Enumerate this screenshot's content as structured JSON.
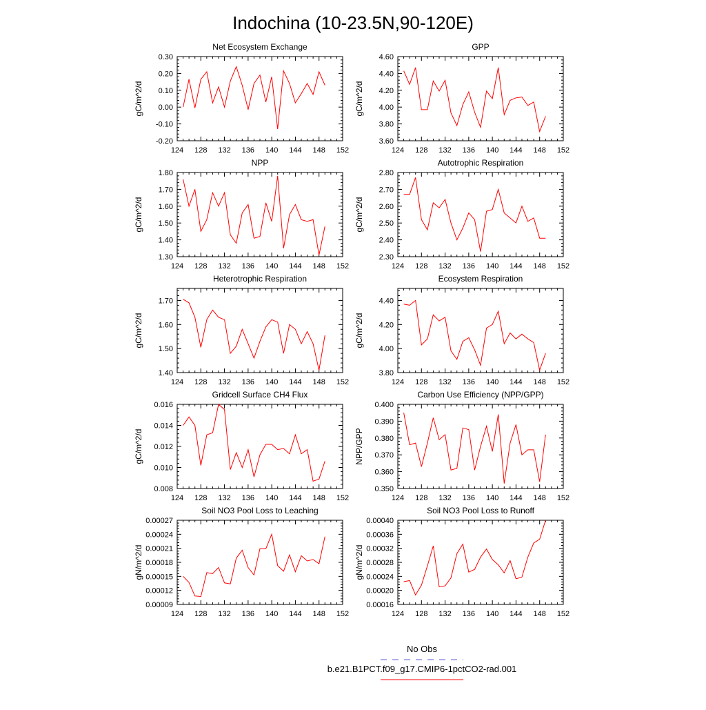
{
  "page": {
    "title": "Indochina (10-23.5N,90-120E)",
    "legend": [
      {
        "label": "No Obs",
        "color": "#5b5bd6",
        "dash": true
      },
      {
        "label": "b.e21.B1PCT.f09_g17.CMIP6-1pctCO2-rad.001",
        "color": "#ff0000",
        "dash": false
      }
    ]
  },
  "chart_data": [
    {
      "type": "line",
      "title": "Net Ecosystem Exchange",
      "ylabel": "gC/m^2/d",
      "xlim": [
        124,
        152
      ],
      "xticks": [
        124,
        128,
        132,
        136,
        140,
        144,
        148,
        152
      ],
      "ylim": [
        -0.2,
        0.3
      ],
      "yticks": [
        -0.2,
        -0.1,
        0.0,
        0.1,
        0.2,
        0.3
      ],
      "yticklabels": [
        "-0.20",
        "-0.10",
        "0.00",
        "0.10",
        "0.20",
        "0.30"
      ],
      "x": [
        125,
        126,
        127,
        128,
        129,
        130,
        131,
        132,
        133,
        134,
        135,
        136,
        137,
        138,
        139,
        140,
        141,
        142,
        143,
        144,
        145,
        146,
        147,
        148,
        149
      ],
      "series": [
        {
          "values": [
            0.0,
            0.165,
            -0.005,
            0.165,
            0.21,
            0.025,
            0.12,
            0.0,
            0.155,
            0.24,
            0.13,
            -0.015,
            0.14,
            0.19,
            0.03,
            0.18,
            -0.13,
            0.215,
            0.14,
            0.025,
            0.08,
            0.14,
            0.075,
            0.21,
            0.13
          ],
          "color": "#ff0000"
        }
      ]
    },
    {
      "type": "line",
      "title": "GPP",
      "ylabel": "gC/m^2/d",
      "xlim": [
        124,
        152
      ],
      "xticks": [
        124,
        128,
        132,
        136,
        140,
        144,
        148,
        152
      ],
      "ylim": [
        3.6,
        4.6
      ],
      "yticks": [
        3.6,
        3.8,
        4.0,
        4.2,
        4.4,
        4.6
      ],
      "yticklabels": [
        "3.60",
        "3.80",
        "4.00",
        "4.20",
        "4.40",
        "4.60"
      ],
      "x": [
        125,
        126,
        127,
        128,
        129,
        130,
        131,
        132,
        133,
        134,
        135,
        136,
        137,
        138,
        139,
        140,
        141,
        142,
        143,
        144,
        145,
        146,
        147,
        148,
        149
      ],
      "series": [
        {
          "values": [
            4.43,
            4.27,
            4.47,
            3.97,
            3.97,
            4.31,
            4.19,
            4.32,
            3.93,
            3.78,
            4.03,
            4.18,
            3.94,
            3.76,
            4.19,
            4.1,
            4.47,
            3.91,
            4.08,
            4.11,
            4.12,
            4.02,
            4.06,
            3.71,
            3.89
          ],
          "color": "#ff0000"
        }
      ]
    },
    {
      "type": "line",
      "title": "NPP",
      "ylabel": "gC/m^2/d",
      "xlim": [
        124,
        152
      ],
      "xticks": [
        124,
        128,
        132,
        136,
        140,
        144,
        148,
        152
      ],
      "ylim": [
        1.3,
        1.8
      ],
      "yticks": [
        1.3,
        1.4,
        1.5,
        1.6,
        1.7,
        1.8
      ],
      "yticklabels": [
        "1.30",
        "1.40",
        "1.50",
        "1.60",
        "1.70",
        "1.80"
      ],
      "x": [
        125,
        126,
        127,
        128,
        129,
        130,
        131,
        132,
        133,
        134,
        135,
        136,
        137,
        138,
        139,
        140,
        141,
        142,
        143,
        144,
        145,
        146,
        147,
        148,
        149
      ],
      "series": [
        {
          "values": [
            1.76,
            1.6,
            1.7,
            1.45,
            1.52,
            1.68,
            1.6,
            1.68,
            1.43,
            1.38,
            1.56,
            1.61,
            1.41,
            1.42,
            1.62,
            1.51,
            1.78,
            1.35,
            1.55,
            1.61,
            1.52,
            1.51,
            1.52,
            1.31,
            1.48
          ],
          "color": "#ff0000"
        }
      ]
    },
    {
      "type": "line",
      "title": "Autotrophic Respiration",
      "ylabel": "gC/m^2/d",
      "xlim": [
        124,
        152
      ],
      "xticks": [
        124,
        128,
        132,
        136,
        140,
        144,
        148,
        152
      ],
      "ylim": [
        2.3,
        2.8
      ],
      "yticks": [
        2.3,
        2.4,
        2.5,
        2.6,
        2.7,
        2.8
      ],
      "yticklabels": [
        "2.30",
        "2.40",
        "2.50",
        "2.60",
        "2.70",
        "2.80"
      ],
      "x": [
        125,
        126,
        127,
        128,
        129,
        130,
        131,
        132,
        133,
        134,
        135,
        136,
        137,
        138,
        139,
        140,
        141,
        142,
        143,
        144,
        145,
        146,
        147,
        148,
        149
      ],
      "series": [
        {
          "values": [
            2.67,
            2.67,
            2.77,
            2.52,
            2.46,
            2.62,
            2.59,
            2.64,
            2.5,
            2.4,
            2.47,
            2.56,
            2.52,
            2.33,
            2.57,
            2.58,
            2.7,
            2.56,
            2.53,
            2.5,
            2.6,
            2.51,
            2.53,
            2.41,
            2.41
          ],
          "color": "#ff0000"
        }
      ]
    },
    {
      "type": "line",
      "title": "Heterotrophic Respiration",
      "ylabel": "gC/m^2/d",
      "xlim": [
        124,
        152
      ],
      "xticks": [
        124,
        128,
        132,
        136,
        140,
        144,
        148,
        152
      ],
      "ylim": [
        1.4,
        1.75
      ],
      "yticks": [
        1.4,
        1.5,
        1.6,
        1.7
      ],
      "yticklabels": [
        "1.40",
        "1.50",
        "1.60",
        "1.70"
      ],
      "x": [
        125,
        126,
        127,
        128,
        129,
        130,
        131,
        132,
        133,
        134,
        135,
        136,
        137,
        138,
        139,
        140,
        141,
        142,
        143,
        144,
        145,
        146,
        147,
        148,
        149
      ],
      "series": [
        {
          "values": [
            1.705,
            1.69,
            1.63,
            1.505,
            1.62,
            1.66,
            1.63,
            1.62,
            1.48,
            1.51,
            1.58,
            1.52,
            1.46,
            1.53,
            1.59,
            1.62,
            1.61,
            1.48,
            1.6,
            1.58,
            1.52,
            1.57,
            1.52,
            1.41,
            1.555
          ],
          "color": "#ff0000"
        }
      ]
    },
    {
      "type": "line",
      "title": "Ecosystem Respiration",
      "ylabel": "gC/m^2/d",
      "xlim": [
        124,
        152
      ],
      "xticks": [
        124,
        128,
        132,
        136,
        140,
        144,
        148,
        152
      ],
      "ylim": [
        3.8,
        4.5
      ],
      "yticks": [
        3.8,
        4.0,
        4.2,
        4.4
      ],
      "yticklabels": [
        "3.80",
        "4.00",
        "4.20",
        "4.40"
      ],
      "x": [
        125,
        126,
        127,
        128,
        129,
        130,
        131,
        132,
        133,
        134,
        135,
        136,
        137,
        138,
        139,
        140,
        141,
        142,
        143,
        144,
        145,
        146,
        147,
        148,
        149
      ],
      "series": [
        {
          "values": [
            4.37,
            4.36,
            4.4,
            4.03,
            4.08,
            4.28,
            4.23,
            4.26,
            3.98,
            3.91,
            4.06,
            4.09,
            3.99,
            3.86,
            4.17,
            4.2,
            4.31,
            4.04,
            4.13,
            4.08,
            4.12,
            4.08,
            4.05,
            3.82,
            3.96
          ],
          "color": "#ff0000"
        }
      ]
    },
    {
      "type": "line",
      "title": "Gridcell Surface CH4 Flux",
      "ylabel": "gC/m^2/d",
      "xlim": [
        124,
        152
      ],
      "xticks": [
        124,
        128,
        132,
        136,
        140,
        144,
        148,
        152
      ],
      "ylim": [
        0.008,
        0.016
      ],
      "yticks": [
        0.008,
        0.01,
        0.012,
        0.014,
        0.016
      ],
      "yticklabels": [
        "0.008",
        "0.010",
        "0.012",
        "0.014",
        "0.016"
      ],
      "x": [
        125,
        126,
        127,
        128,
        129,
        130,
        131,
        132,
        133,
        134,
        135,
        136,
        137,
        138,
        139,
        140,
        141,
        142,
        143,
        144,
        145,
        146,
        147,
        148,
        149
      ],
      "series": [
        {
          "values": [
            0.014,
            0.0148,
            0.014,
            0.0102,
            0.0131,
            0.0133,
            0.016,
            0.0155,
            0.0098,
            0.0114,
            0.01,
            0.0117,
            0.0091,
            0.0112,
            0.0122,
            0.0122,
            0.0117,
            0.0118,
            0.0113,
            0.0131,
            0.0113,
            0.0117,
            0.0087,
            0.0089,
            0.0106
          ],
          "color": "#ff0000"
        }
      ]
    },
    {
      "type": "line",
      "title": "Carbon Use Efficiency (NPP/GPP)",
      "ylabel": "NPP/GPP",
      "xlim": [
        124,
        152
      ],
      "xticks": [
        124,
        128,
        132,
        136,
        140,
        144,
        148,
        152
      ],
      "ylim": [
        0.35,
        0.4
      ],
      "yticks": [
        0.35,
        0.36,
        0.37,
        0.38,
        0.39,
        0.4
      ],
      "yticklabels": [
        "0.350",
        "0.360",
        "0.370",
        "0.380",
        "0.390",
        "0.400"
      ],
      "x": [
        125,
        126,
        127,
        128,
        129,
        130,
        131,
        132,
        133,
        134,
        135,
        136,
        137,
        138,
        139,
        140,
        141,
        142,
        143,
        144,
        145,
        146,
        147,
        148,
        149
      ],
      "series": [
        {
          "values": [
            0.395,
            0.376,
            0.377,
            0.363,
            0.377,
            0.392,
            0.379,
            0.382,
            0.361,
            0.362,
            0.386,
            0.385,
            0.361,
            0.375,
            0.387,
            0.372,
            0.394,
            0.353,
            0.377,
            0.388,
            0.37,
            0.373,
            0.373,
            0.354,
            0.382
          ],
          "color": "#ff0000"
        }
      ]
    },
    {
      "type": "line",
      "title": "Soil NO3 Pool Loss to Leaching",
      "ylabel": "gN/m^2/d",
      "xlim": [
        124,
        152
      ],
      "xticks": [
        124,
        128,
        132,
        136,
        140,
        144,
        148,
        152
      ],
      "ylim": [
        9e-05,
        0.00027
      ],
      "yticks": [
        9e-05,
        0.00012,
        0.00015,
        0.00018,
        0.00021,
        0.00024,
        0.00027
      ],
      "yticklabels": [
        "0.00009",
        "0.00012",
        "0.00015",
        "0.00018",
        "0.00021",
        "0.00024",
        "0.00027"
      ],
      "x": [
        125,
        126,
        127,
        128,
        129,
        130,
        131,
        132,
        133,
        134,
        135,
        136,
        137,
        138,
        139,
        140,
        141,
        142,
        143,
        144,
        145,
        146,
        147,
        148,
        149
      ],
      "series": [
        {
          "values": [
            0.00015,
            0.000137,
            0.000108,
            0.000107,
            0.000158,
            0.000156,
            0.000169,
            0.000136,
            0.000134,
            0.000189,
            0.000206,
            0.000169,
            0.000153,
            0.000209,
            0.000209,
            0.00024,
            0.000173,
            0.000161,
            0.000196,
            0.00016,
            0.000194,
            0.000183,
            0.000186,
            0.000177,
            0.000235
          ],
          "color": "#ff0000"
        }
      ]
    },
    {
      "type": "line",
      "title": "Soil NO3 Pool Loss to Runoff",
      "ylabel": "gN/m^2/d",
      "xlim": [
        124,
        152
      ],
      "xticks": [
        124,
        128,
        132,
        136,
        140,
        144,
        148,
        152
      ],
      "ylim": [
        0.00016,
        0.0004
      ],
      "yticks": [
        0.00016,
        0.0002,
        0.00024,
        0.00028,
        0.00032,
        0.00036,
        0.0004
      ],
      "yticklabels": [
        "0.00016",
        "0.00020",
        "0.00024",
        "0.00028",
        "0.00032",
        "0.00036",
        "0.00040"
      ],
      "x": [
        125,
        126,
        127,
        128,
        129,
        130,
        131,
        132,
        133,
        134,
        135,
        136,
        137,
        138,
        139,
        140,
        141,
        142,
        143,
        144,
        145,
        146,
        147,
        148,
        149
      ],
      "series": [
        {
          "values": [
            0.000225,
            0.000228,
            0.000187,
            0.000215,
            0.00027,
            0.000327,
            0.00021,
            0.000213,
            0.000236,
            0.000305,
            0.000332,
            0.000252,
            0.00026,
            0.000295,
            0.000318,
            0.000288,
            0.000273,
            0.00025,
            0.000285,
            0.000233,
            0.000238,
            0.000295,
            0.000335,
            0.000346,
            0.0004
          ],
          "color": "#ff0000"
        }
      ]
    }
  ]
}
